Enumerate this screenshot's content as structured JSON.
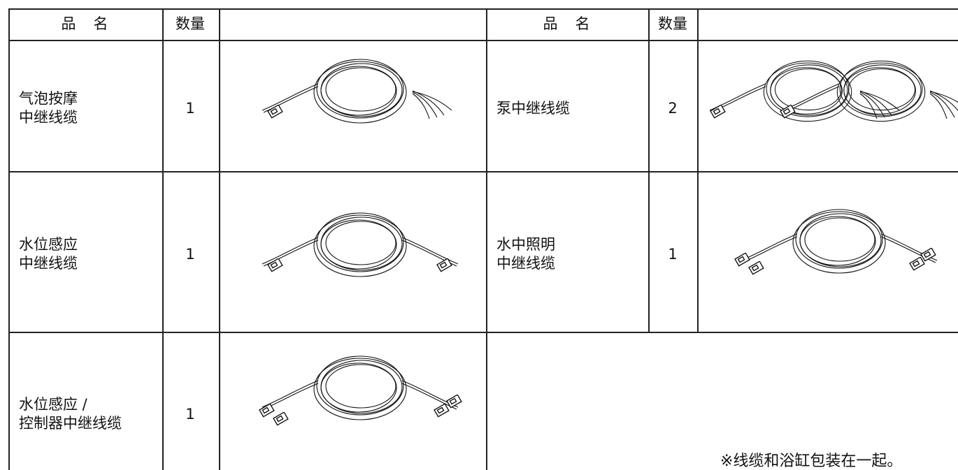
{
  "left_table": {
    "header": {
      "name": "品　名",
      "qty": "数量"
    },
    "rows": [
      {
        "name": [
          "气泡按摩",
          "中继线缆"
        ],
        "qty": 1
      },
      {
        "name": [
          "水位感应",
          "中继线缆"
        ],
        "qty": 1
      },
      {
        "name": [
          "水位感应 /",
          "控制器中继线缆"
        ],
        "qty": 1
      }
    ]
  },
  "right_table": {
    "header": {
      "name": "品　名",
      "qty": "数量"
    },
    "rows": [
      {
        "name": [
          "泵中继线缆"
        ],
        "qty": 2
      },
      {
        "name": [
          "水中照明",
          "中继线缆"
        ],
        "qty": 1
      }
    ]
  },
  "note": "※线缆和浴缸包装在一起。"
}
